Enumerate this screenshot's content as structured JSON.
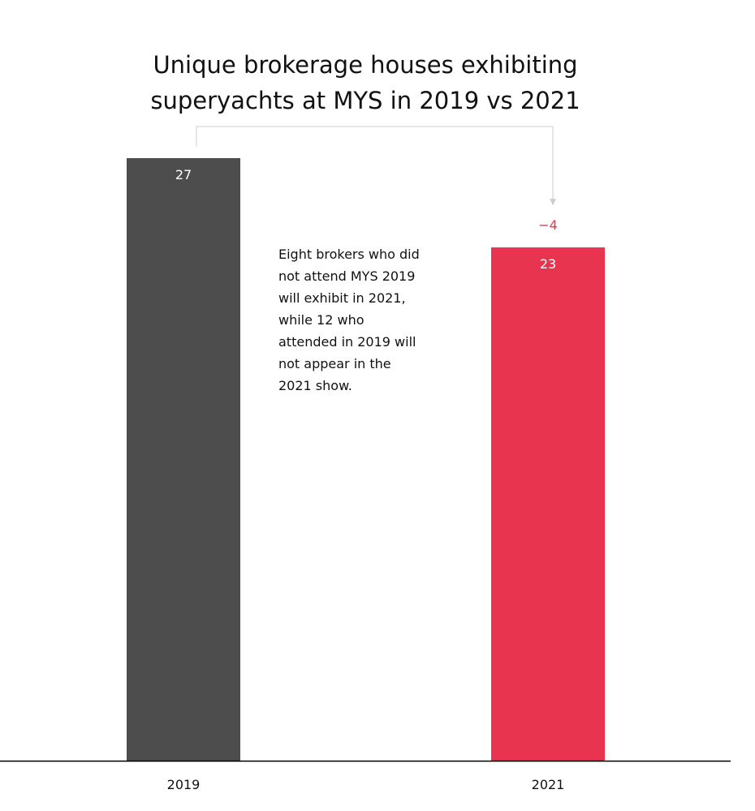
{
  "chart_data": {
    "type": "bar",
    "title": "Unique brokerage houses exhibiting superyachts at MYS in 2019 vs 2021",
    "title_lines": [
      "Unique brokerage houses exhibiting",
      "superyachts at MYS in 2019 vs 2021"
    ],
    "categories": [
      "2019",
      "2021"
    ],
    "values": [
      27,
      23
    ],
    "data_labels": [
      "27",
      "23"
    ],
    "bar_colors": [
      "#4d4d4d",
      "#e8344e"
    ],
    "change_label": "−4",
    "change_color": "#e8344e",
    "annotation_lines": [
      "Eight brokers who did",
      "not attend MYS 2019",
      "will exhibit in 2021,",
      "while 12 who",
      "attended in 2019 will",
      "not appear in the",
      "2021 show."
    ],
    "xlabel": "",
    "ylabel": "",
    "ylim": [
      0,
      27
    ],
    "grid": false,
    "legend": "none",
    "arrow_color": "#cccccc",
    "axis_color": "#000000",
    "label_color": "#ffffff"
  }
}
